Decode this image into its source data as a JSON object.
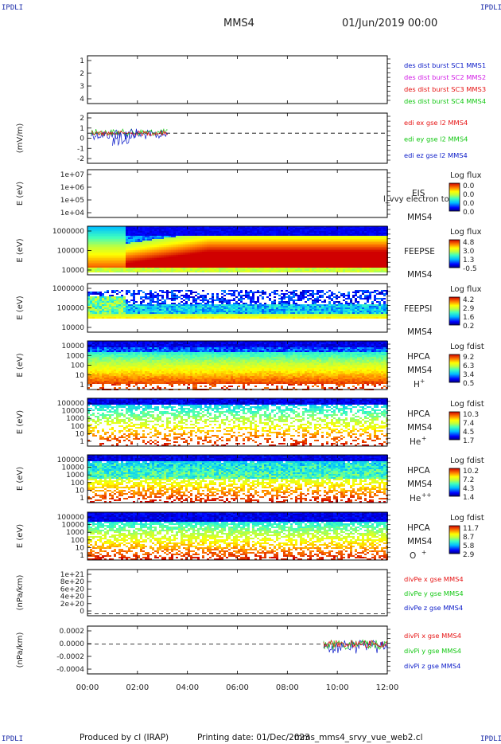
{
  "header": {
    "mission": "MMS4",
    "datetime": "01/Jun/2019 00:00",
    "corner_label": "IPDLI"
  },
  "footer": {
    "produced_by": "Produced by cl (IRAP)",
    "printing_date": "Printing date: 01/Dec/2023",
    "script": "mms_mms4_srvy_vue_web2.cl"
  },
  "colors": {
    "series_blue": "#0a1ac8",
    "series_magenta": "#d21ee6",
    "series_red": "#e61414",
    "series_green": "#14c814",
    "colormap": [
      "#00007f",
      "#0000ff",
      "#007fff",
      "#00ffff",
      "#7fff7f",
      "#ffff00",
      "#ff7f00",
      "#ff0000",
      "#7f0000"
    ]
  },
  "chart_data": [
    {
      "type": "line",
      "ylabel": "",
      "ylim": [
        0.5,
        4.5
      ],
      "yticks": [
        "1",
        "2",
        "3",
        "4"
      ],
      "series": [
        {
          "name": "des dist burst SC1 MMS1",
          "color": "#0a1ac8"
        },
        {
          "name": "des dist burst SC2 MMS2",
          "color": "#d21ee6"
        },
        {
          "name": "des dist burst SC3 MMS3",
          "color": "#e61414"
        },
        {
          "name": "des dist burst SC4 MMS4",
          "color": "#14c814"
        }
      ]
    },
    {
      "type": "line",
      "ylabel": "(mV/m)",
      "ylim": [
        -3,
        2
      ],
      "yticks": [
        "2",
        "1",
        "0",
        "-1",
        "-2"
      ],
      "reference_line": 0,
      "data_span_hours": [
        0.15,
        3.2
      ],
      "series": [
        {
          "name": "edi ex gse l2 MMS4",
          "color": "#e61414"
        },
        {
          "name": "edi ey gse l2 MMS4",
          "color": "#14c814"
        },
        {
          "name": "edi ez gse l2 MMS4",
          "color": "#0a1ac8"
        }
      ]
    },
    {
      "type": "heatmap",
      "ylabel": "E (eV)",
      "yticks": [
        "1e+07",
        "1e+06",
        "1e+05",
        "1e+04"
      ],
      "instrument": [
        "EIS",
        "MMS4"
      ],
      "overlap_text": "l_vvy electron to",
      "colorbar": {
        "title": "Log flux",
        "labels": [
          "0.0",
          "0.0",
          "0.0",
          "0.0"
        ]
      }
    },
    {
      "type": "heatmap",
      "ylabel": "E (eV)",
      "yticks": [
        "1000000",
        "100000",
        "10000"
      ],
      "instrument": [
        "FEEPSE",
        "MMS4"
      ],
      "colorbar": {
        "title": "Log flux",
        "labels": [
          "4.8",
          "3.0",
          "1.3",
          "-0.5"
        ]
      }
    },
    {
      "type": "heatmap",
      "ylabel": "E (eV)",
      "yticks": [
        "1000000",
        "100000",
        "10000"
      ],
      "instrument": [
        "FEEPSI",
        "MMS4"
      ],
      "colorbar": {
        "title": "Log flux",
        "labels": [
          "4.2",
          "2.9",
          "1.6",
          "0.2"
        ]
      }
    },
    {
      "type": "heatmap",
      "ylabel": "E (eV)",
      "yticks": [
        "10000",
        "1000",
        "100",
        "10",
        "1"
      ],
      "instrument": [
        "HPCA",
        "MMS4"
      ],
      "species": "H",
      "species_sup": "+",
      "colorbar": {
        "title": "Log fdist",
        "labels": [
          "9.2",
          "6.3",
          "3.4",
          "0.5"
        ]
      }
    },
    {
      "type": "heatmap",
      "ylabel": "E (eV)",
      "yticks": [
        "100000",
        "10000",
        "1000",
        "100",
        "10",
        "1"
      ],
      "instrument": [
        "HPCA",
        "MMS4"
      ],
      "species": "He",
      "species_sup": "+",
      "colorbar": {
        "title": "Log fdist",
        "labels": [
          "10.3",
          "7.4",
          "4.5",
          "1.7"
        ]
      }
    },
    {
      "type": "heatmap",
      "ylabel": "E (eV)",
      "yticks": [
        "100000",
        "10000",
        "1000",
        "100",
        "10",
        "1"
      ],
      "instrument": [
        "HPCA",
        "MMS4"
      ],
      "species": "He",
      "species_sup": "++",
      "colorbar": {
        "title": "Log fdist",
        "labels": [
          "10.2",
          "7.2",
          "4.3",
          "1.4"
        ]
      }
    },
    {
      "type": "heatmap",
      "ylabel": "E (eV)",
      "yticks": [
        "100000",
        "10000",
        "1000",
        "100",
        "10",
        "1"
      ],
      "instrument": [
        "HPCA",
        "MMS4"
      ],
      "species": "O",
      "species_sup": "+",
      "colorbar": {
        "title": "Log fdist",
        "labels": [
          "11.7",
          "8.7",
          "5.8",
          "2.9"
        ]
      }
    },
    {
      "type": "line",
      "ylabel": "(nPa/km)",
      "ylim": [
        -5e+19,
        1.1e+21
      ],
      "yticks": [
        "1e+21",
        "8e+20",
        "6e+20",
        "4e+20",
        "2e+20",
        "0"
      ],
      "reference_line": 0,
      "series": [
        {
          "name": "divPe x gse MMS4",
          "color": "#e61414"
        },
        {
          "name": "divPe y gse MMS4",
          "color": "#14c814"
        },
        {
          "name": "divPe z gse MMS4",
          "color": "#0a1ac8"
        }
      ]
    },
    {
      "type": "line",
      "ylabel": "(nPa/km)",
      "ylim": [
        -0.0005,
        0.0003
      ],
      "yticks": [
        "0.0002",
        "0.0000",
        "-0.0002",
        "-0.0004"
      ],
      "reference_line": 0,
      "data_span_hours": [
        9.45,
        12.0
      ],
      "series": [
        {
          "name": "divPi x gse MMS4",
          "color": "#e61414"
        },
        {
          "name": "divPi y gse MMS4",
          "color": "#14c814"
        },
        {
          "name": "divPi z gse MMS4",
          "color": "#0a1ac8"
        }
      ]
    }
  ],
  "time_axis": {
    "range_hours": [
      0,
      12
    ],
    "ticks": [
      "00:00",
      "02:00",
      "04:00",
      "06:00",
      "08:00",
      "10:00",
      "12:00"
    ]
  }
}
